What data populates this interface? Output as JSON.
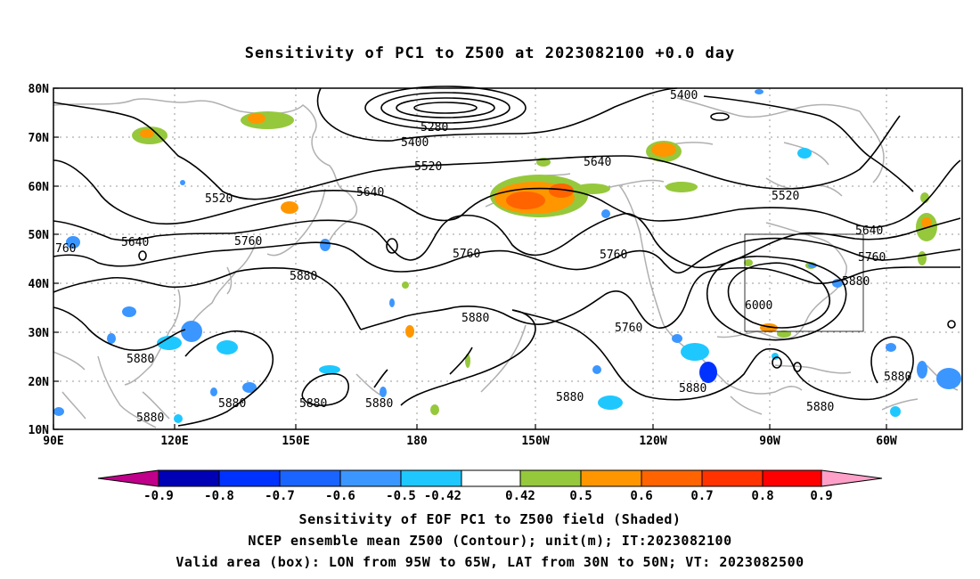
{
  "title": "Sensitivity of PC1 to Z500 at 2023082100 +0.0 day",
  "map": {
    "lat_labels": [
      "80N",
      "70N",
      "60N",
      "50N",
      "40N",
      "30N",
      "20N",
      "10N"
    ],
    "lon_labels": [
      "90E",
      "120E",
      "150E",
      "180",
      "150W",
      "120W",
      "90W",
      "60W"
    ],
    "contour_labels": [
      {
        "text": "5280"
      },
      {
        "text": "5400"
      },
      {
        "text": "5400"
      },
      {
        "text": "5520"
      },
      {
        "text": "5520"
      },
      {
        "text": "5520"
      },
      {
        "text": "5640"
      },
      {
        "text": "5640"
      },
      {
        "text": "5640"
      },
      {
        "text": "5640"
      },
      {
        "text": "760"
      },
      {
        "text": "5760"
      },
      {
        "text": "5760"
      },
      {
        "text": "5760"
      },
      {
        "text": "5760"
      },
      {
        "text": "5760"
      },
      {
        "text": "5880"
      },
      {
        "text": "5880"
      },
      {
        "text": "5880"
      },
      {
        "text": "5880"
      },
      {
        "text": "5880"
      },
      {
        "text": "5880"
      },
      {
        "text": "5880"
      },
      {
        "text": "5880"
      },
      {
        "text": "5880"
      },
      {
        "text": "5880"
      },
      {
        "text": "5880"
      },
      {
        "text": "5880"
      },
      {
        "text": "6000"
      }
    ],
    "valid_box": "LON 95W-65W, LAT 30N-50N"
  },
  "colorbar": {
    "colors": [
      "#c0008a",
      "#0000b4",
      "#0032ff",
      "#1a64ff",
      "#3c96ff",
      "#1ec8ff",
      "#ffffff",
      "#96c83c",
      "#ff9600",
      "#ff6400",
      "#ff3200",
      "#ff0000",
      "#ffa0c8"
    ],
    "labels": [
      "-0.9",
      "-0.8",
      "-0.7",
      "-0.6",
      "-0.5",
      "-0.42",
      "0.42",
      "0.5",
      "0.6",
      "0.7",
      "0.8",
      "0.9"
    ]
  },
  "footer": {
    "line1": "Sensitivity of EOF PC1 to Z500 field (Shaded)",
    "line2": "NCEP ensemble mean Z500 (Contour); unit(m); IT:2023082100",
    "line3": "Valid area (box): LON from 95W to 65W, LAT from 30N to 50N; VT: 2023082500"
  }
}
